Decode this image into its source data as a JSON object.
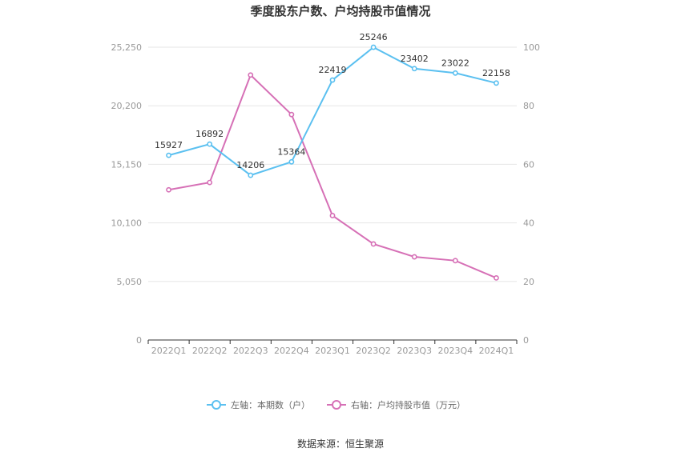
{
  "chart_data": {
    "type": "line",
    "title": "季度股东户数、户均持股市值情况",
    "categories": [
      "2022Q1",
      "2022Q2",
      "2022Q3",
      "2022Q4",
      "2023Q1",
      "2023Q2",
      "2023Q3",
      "2023Q4",
      "2024Q1"
    ],
    "series": [
      {
        "name": "左轴：本期数（户）",
        "axis": "left",
        "color": "#5bc0f0",
        "values": [
          15927,
          16892,
          14206,
          15364,
          22419,
          25246,
          23402,
          23022,
          22158
        ],
        "show_labels": true
      },
      {
        "name": "右轴：户均持股市值（万元）",
        "axis": "right",
        "color": "#d670b6",
        "values": [
          51.3,
          53.8,
          90.5,
          77.0,
          42.5,
          32.8,
          28.4,
          27.1,
          21.2
        ],
        "show_labels": false
      }
    ],
    "left_axis": {
      "ticks": [
        0,
        5050,
        10100,
        15150,
        20200,
        25250
      ],
      "tick_labels": [
        "0",
        "5,050",
        "10,100",
        "15,150",
        "20,200",
        "25,250"
      ],
      "ylim": [
        0,
        25250
      ]
    },
    "right_axis": {
      "ticks": [
        0,
        20,
        40,
        60,
        80,
        100
      ],
      "tick_labels": [
        "0",
        "20",
        "40",
        "60",
        "80",
        "100"
      ],
      "ylim": [
        0,
        100
      ]
    },
    "grid": true,
    "legend_position": "bottom"
  },
  "source_text": "数据来源：恒生聚源"
}
